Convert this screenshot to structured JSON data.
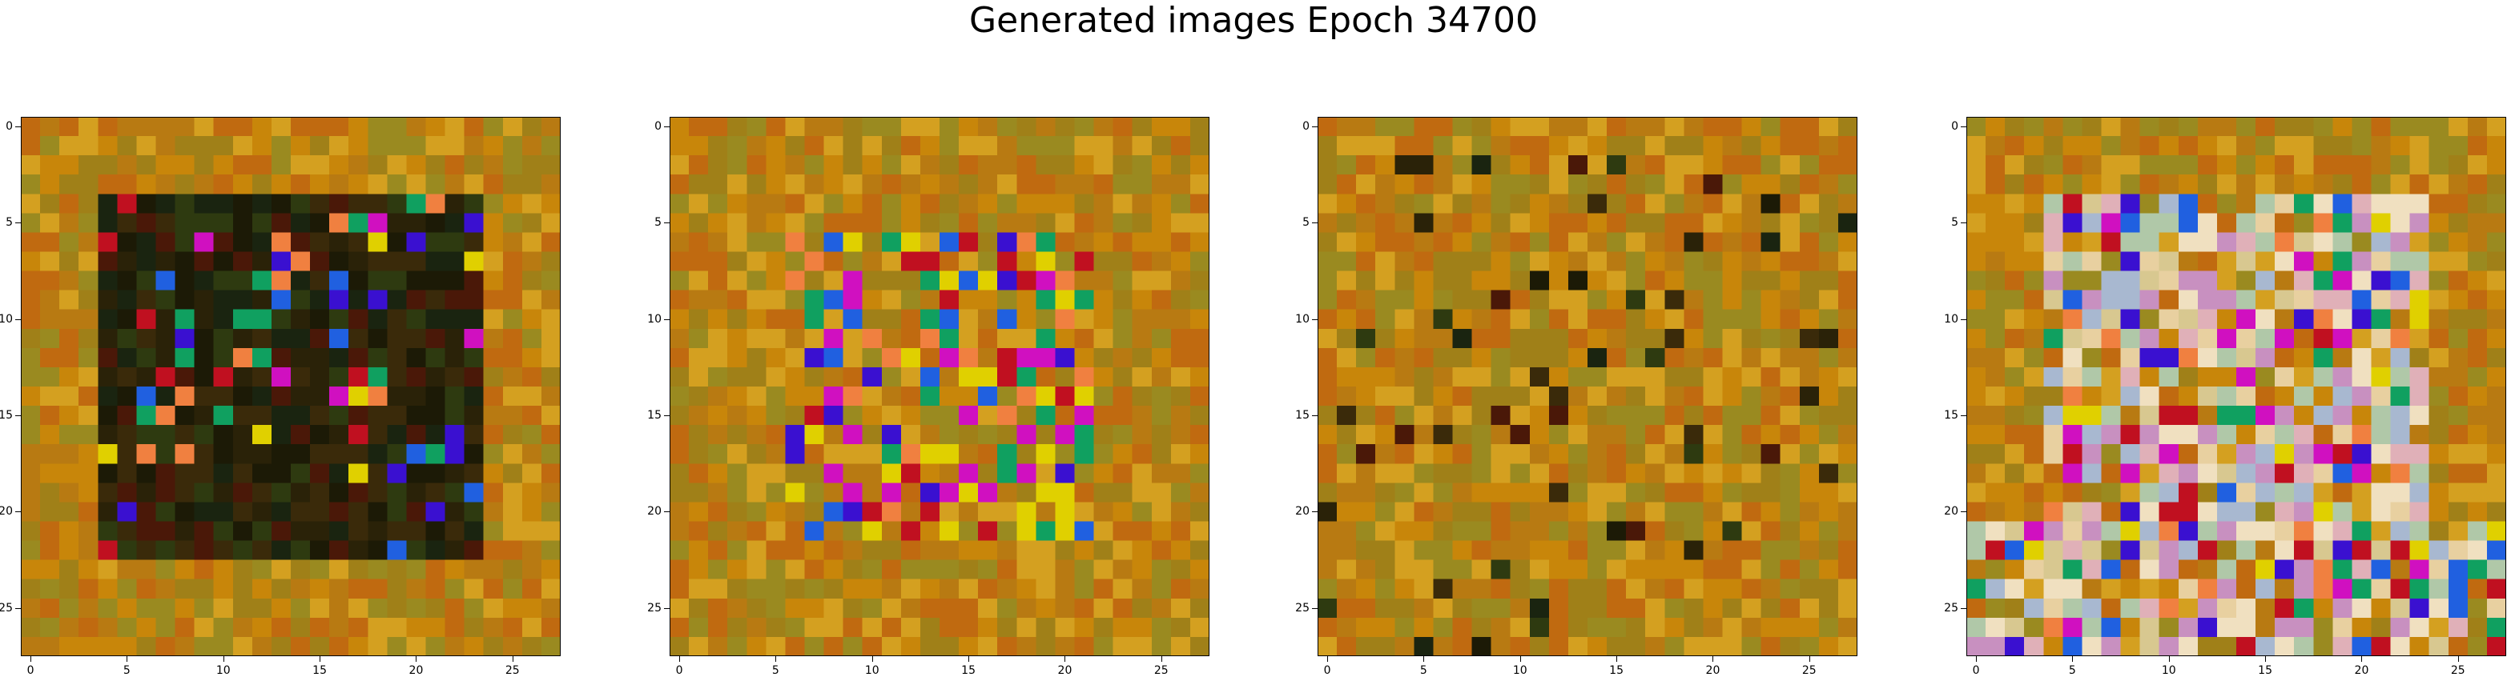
{
  "title": "Generated images Epoch 34700",
  "panels": [
    {
      "name": "image-1",
      "style": "dark-center"
    },
    {
      "name": "image-2",
      "style": "vivid-center"
    },
    {
      "name": "image-3",
      "style": "earthy"
    },
    {
      "name": "image-4",
      "style": "pastel-center"
    }
  ],
  "axes": {
    "x_ticks": [
      "0",
      "5",
      "10",
      "15",
      "20",
      "25"
    ],
    "y_ticks": [
      "0",
      "5",
      "10",
      "15",
      "20",
      "25"
    ]
  },
  "image_grid": {
    "rows": 28,
    "cols": 28
  },
  "palette": {
    "base": [
      "#c8860a",
      "#b87a12",
      "#d4a020",
      "#a08018",
      "#c06a10",
      "#9a8a20"
    ],
    "dark": [
      "#2a2208",
      "#1c1a06",
      "#3a2a0a",
      "#2e3a10",
      "#4a1808",
      "#1a2410"
    ],
    "vivid": [
      "#3a10d0",
      "#d010c0",
      "#e0d000",
      "#c01020",
      "#2060e0",
      "#10a060",
      "#f08040"
    ],
    "pastel": [
      "#e0b0b8",
      "#d8c890",
      "#b0c8a8",
      "#c890c0",
      "#e8d0a0",
      "#a8b8d0",
      "#f0e0c0"
    ]
  }
}
